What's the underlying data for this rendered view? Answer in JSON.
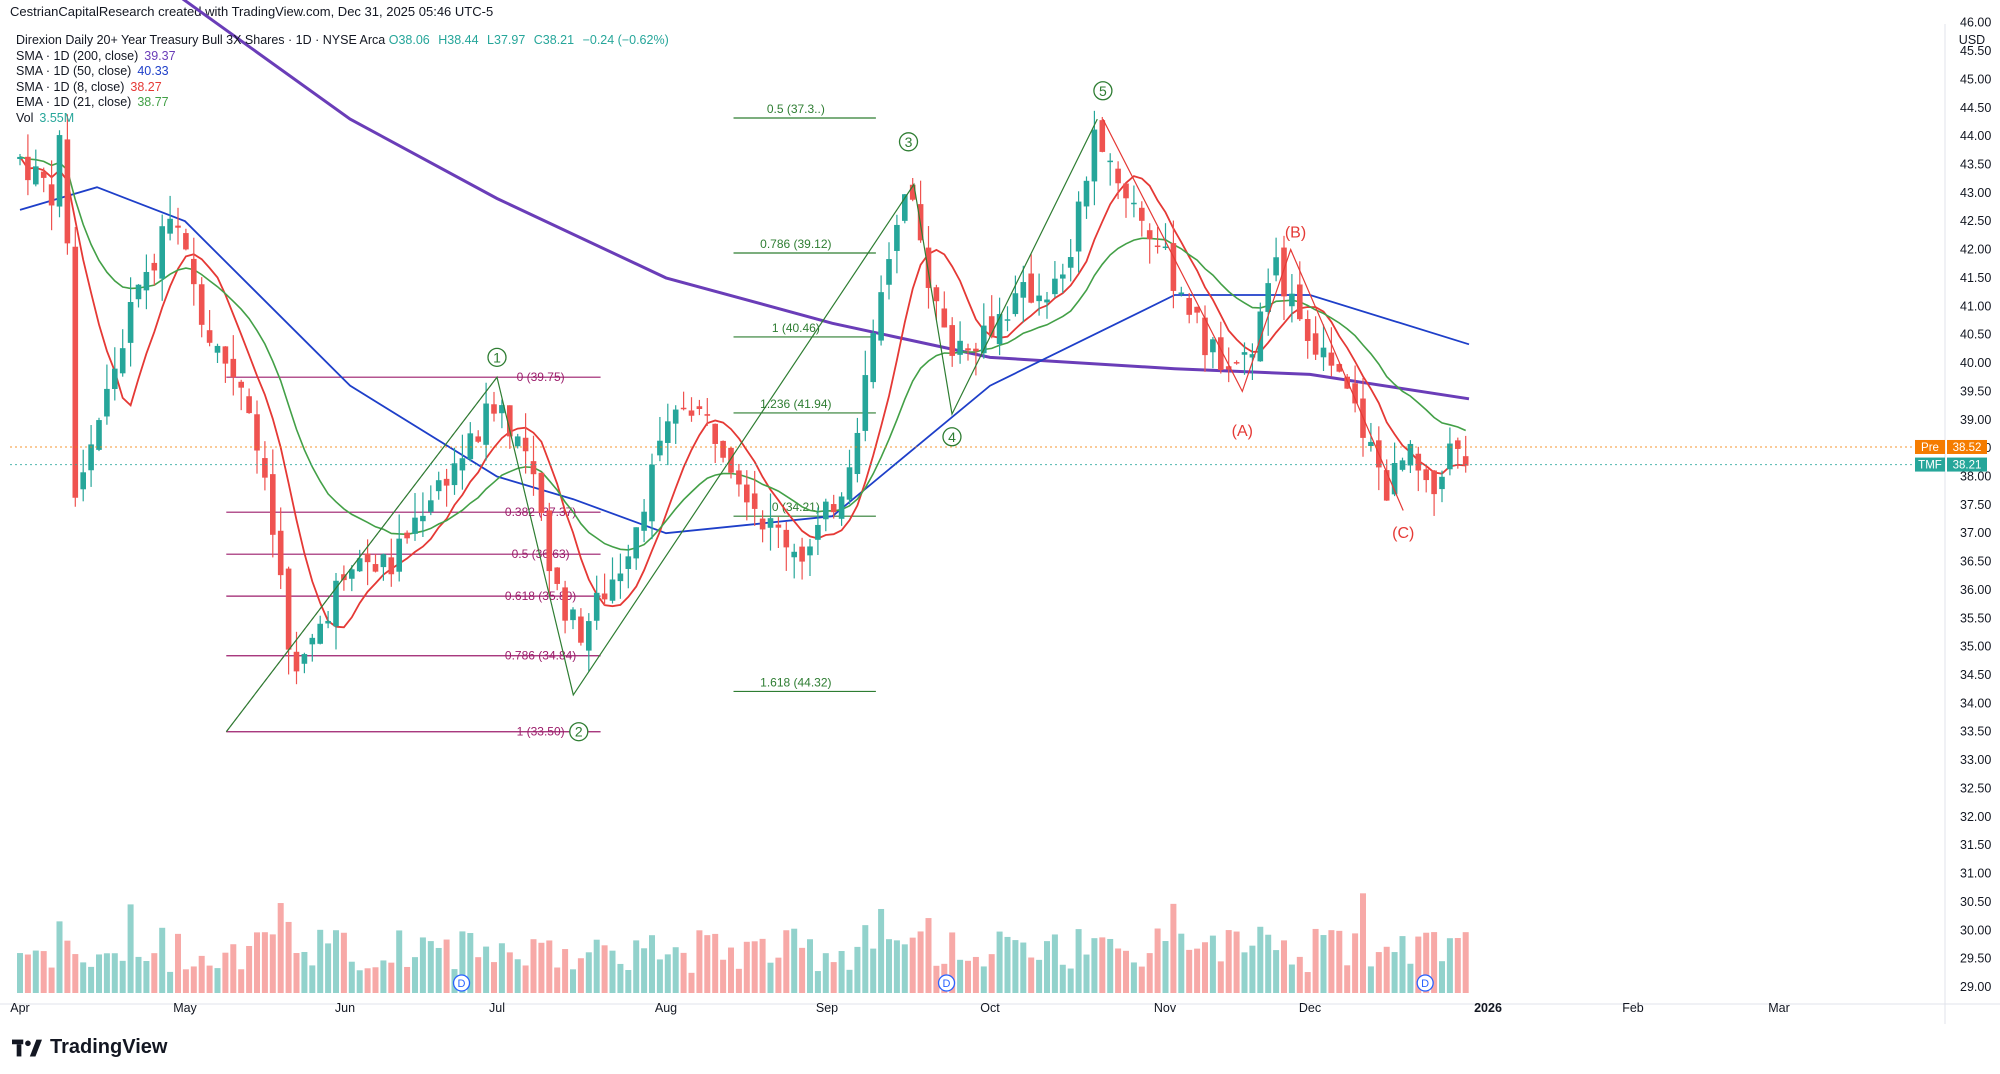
{
  "header": {
    "attribution": "CestrianCapitalResearch created with TradingView.com, Dec 31, 2025 05:46 UTC-5"
  },
  "legend": {
    "title": "Direxion Daily 20+ Year Treasury Bull 3X Shares · 1D · NYSE Arca",
    "ohlc": {
      "o": "O38.06",
      "h": "H38.44",
      "l": "L37.97",
      "c": "C38.21",
      "chg": "−0.24 (−0.62%)"
    },
    "indicators": [
      {
        "label": "SMA · 1D (200, close)",
        "value": "39.37",
        "color": "#6a3db8"
      },
      {
        "label": "SMA · 1D (50, close)",
        "value": "40.33",
        "color": "#1e3fc9"
      },
      {
        "label": "SMA · 1D (8, close)",
        "value": "38.27",
        "color": "#e53935"
      },
      {
        "label": "EMA · 1D (21, close)",
        "value": "38.77",
        "color": "#43a047"
      }
    ],
    "vol": {
      "label": "Vol",
      "value": "3.55M"
    }
  },
  "price_axis": {
    "currency": "USD",
    "ticks": [
      "46.00",
      "45.50",
      "45.00",
      "44.50",
      "44.00",
      "43.50",
      "43.00",
      "42.50",
      "42.00",
      "41.50",
      "41.00",
      "40.50",
      "40.00",
      "39.50",
      "39.00",
      "38.50",
      "38.00",
      "37.50",
      "37.00",
      "36.50",
      "36.00",
      "35.50",
      "35.00",
      "34.50",
      "34.00",
      "33.50",
      "33.00",
      "32.50",
      "32.00",
      "31.50",
      "31.00",
      "30.50",
      "30.00",
      "29.50",
      "29.00"
    ],
    "tags": [
      {
        "label": "Pre",
        "value": "38.52",
        "price": 38.52,
        "color": "#f57c00"
      },
      {
        "label": "TMF",
        "value": "38.21",
        "price": 38.21,
        "color": "#26a69a"
      }
    ]
  },
  "time_axis": {
    "labels": [
      "Apr",
      "May",
      "Jun",
      "Jul",
      "Aug",
      "Sep",
      "Oct",
      "Nov",
      "Dec",
      "2026",
      "Feb",
      "Mar"
    ]
  },
  "colors": {
    "up": "#26a69a",
    "down": "#ef5350",
    "vol_up": "#92d2cc",
    "vol_down": "#f7a9a7",
    "fib_green": "#2e7d32",
    "fib_purple": "#9c1d6b",
    "elliott": "#2e7d32",
    "abc": "#e53935"
  },
  "annotations": {
    "waves": [
      "1",
      "2",
      "3",
      "4",
      "5"
    ],
    "abc": [
      "(A)",
      "(B)",
      "(C)"
    ],
    "dividend_markers": [
      "D",
      "D",
      "D"
    ]
  },
  "chart_data": {
    "type": "candlestick",
    "title": "Direxion Daily 20+ Year Treasury Bull 3X Shares · 1D · NYSE Arca",
    "ylabel": "USD",
    "ylim": [
      28.7,
      46.4
    ],
    "x": [
      "Apr",
      "May",
      "Jun",
      "Jul",
      "Aug",
      "Sep",
      "Oct",
      "Nov",
      "Dec",
      "2026",
      "Feb",
      "Mar"
    ],
    "price_path": [
      [
        "Apr 1",
        43.6
      ],
      [
        "Apr 7",
        43.0
      ],
      [
        "Apr 9",
        44.3
      ],
      [
        "Apr 11",
        37.8
      ],
      [
        "Apr 16",
        39.2
      ],
      [
        "Apr 23",
        41.5
      ],
      [
        "Apr 29",
        42.5
      ],
      [
        "May 6",
        40.4
      ],
      [
        "May 13",
        39.5
      ],
      [
        "May 19",
        36.5
      ],
      [
        "May 22",
        34.3
      ],
      [
        "Jun 2",
        36.6
      ],
      [
        "Jun 10",
        36.4
      ],
      [
        "Jun 17",
        37.6
      ],
      [
        "Jun 27",
        38.7
      ],
      [
        "Jul 1",
        39.4
      ],
      [
        "Jul 7",
        38.2
      ],
      [
        "Jul 11",
        36.2
      ],
      [
        "Jul 16",
        35.2
      ],
      [
        "Jul 24",
        36.5
      ],
      [
        "Jul 31",
        38.5
      ],
      [
        "Aug 5",
        39.4
      ],
      [
        "Aug 12",
        38.6
      ],
      [
        "Aug 20",
        37.2
      ],
      [
        "Aug 28",
        36.6
      ],
      [
        "Sep 4",
        37.9
      ],
      [
        "Sep 9",
        40.0
      ],
      [
        "Sep 12",
        41.8
      ],
      [
        "Sep 16",
        42.9
      ],
      [
        "Sep 23",
        40.3
      ],
      [
        "Sep 29",
        40.5
      ],
      [
        "Oct 7",
        41.2
      ],
      [
        "Oct 14",
        41.4
      ],
      [
        "Oct 20",
        44.1
      ],
      [
        "Oct 24",
        43.2
      ],
      [
        "Oct 29",
        42.4
      ],
      [
        "Nov 4",
        41.3
      ],
      [
        "Nov 10",
        40.2
      ],
      [
        "Nov 18",
        40.0
      ],
      [
        "Nov 24",
        41.7
      ],
      [
        "Dec 2",
        40.4
      ],
      [
        "Dec 9",
        39.2
      ],
      [
        "Dec 15",
        37.8
      ],
      [
        "Dec 19",
        38.4
      ],
      [
        "Dec 23",
        37.5
      ],
      [
        "Dec 26",
        38.5
      ],
      [
        "Dec 30",
        38.21
      ]
    ],
    "series": [
      {
        "name": "SMA · 1D (200, close)",
        "last": 39.37,
        "values": [
          [
            "Apr 28",
            46.6
          ],
          [
            "Jun 2",
            44.3
          ],
          [
            "Jul 1",
            42.9
          ],
          [
            "Aug 1",
            41.5
          ],
          [
            "Sep 2",
            40.7
          ],
          [
            "Oct 1",
            40.1
          ],
          [
            "Nov 3",
            39.9
          ],
          [
            "Dec 1",
            39.8
          ],
          [
            "Dec 30",
            39.37
          ]
        ]
      },
      {
        "name": "SMA · 1D (50, close)",
        "last": 40.33,
        "values": [
          [
            "Apr 1",
            42.7
          ],
          [
            "Apr 15",
            43.1
          ],
          [
            "May 1",
            42.5
          ],
          [
            "Jun 2",
            39.6
          ],
          [
            "Jul 1",
            38.0
          ],
          [
            "Jul 15",
            37.6
          ],
          [
            "Aug 1",
            37.0
          ],
          [
            "Sep 2",
            37.3
          ],
          [
            "Oct 1",
            39.6
          ],
          [
            "Nov 3",
            41.2
          ],
          [
            "Dec 1",
            41.2
          ],
          [
            "Dec 30",
            40.33
          ]
        ]
      },
      {
        "name": "SMA · 1D (8, close)",
        "last": 38.27
      },
      {
        "name": "EMA · 1D (21, close)",
        "last": 38.77
      }
    ],
    "fib_retracements": [
      {
        "color": "#9c1d6b",
        "levels": [
          [
            "0",
            39.75
          ],
          [
            "0.382",
            37.37
          ],
          [
            "0.5",
            36.63
          ],
          [
            "0.618",
            35.89
          ],
          [
            "0.786",
            34.84
          ],
          [
            "1",
            33.5
          ]
        ]
      },
      {
        "color": "#2e7d32",
        "levels": [
          [
            "0",
            34.21
          ],
          [
            "0.786",
            39.12
          ],
          [
            "1",
            40.46
          ],
          [
            "1.236",
            41.94
          ],
          [
            "1.618",
            44.32
          ],
          [
            "0.5",
            37.3
          ]
        ]
      }
    ],
    "fib_labels": [
      "0 (39.75)",
      "0.382 (37.37)",
      "0.5 (36.63)",
      "0.618 (35.89)",
      "0.786 (34.84)",
      "1 (33.50)",
      "1.618 (44.32)",
      "1.236 (41.94)",
      "1 (40.46)",
      "0.786 (39.12)",
      "0.5 (37.3..)",
      "0 (34.21)"
    ],
    "volume_unit": "relative",
    "grid": false,
    "legend_position": "top-left"
  }
}
